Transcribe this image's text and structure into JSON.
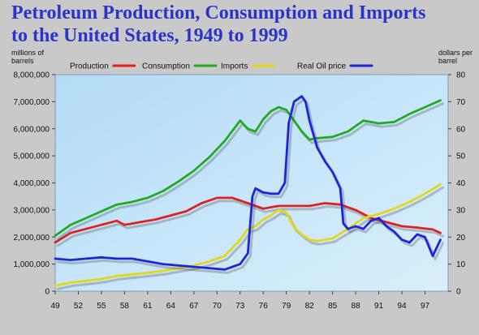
{
  "title_line1": "Petroleum Production, Consumption and Imports",
  "title_line2": "to the United States, 1949 to 1999",
  "chart_data": {
    "type": "line",
    "title": "Petroleum Production, Consumption and Imports to the United States, 1949 to 1999",
    "ylabel_left": [
      "millions of",
      "barrels"
    ],
    "ylabel_right": [
      "dollars per",
      "barrel"
    ],
    "xlabel": "",
    "xlim": [
      1949,
      2000
    ],
    "ylim_left": [
      0,
      8000000
    ],
    "ylim_right": [
      0,
      80
    ],
    "x_tick_labels": [
      "49",
      "52",
      "55",
      "58",
      "61",
      "64",
      "67",
      "70",
      "73",
      "76",
      "79",
      "82",
      "85",
      "88",
      "91",
      "94",
      "97"
    ],
    "x_tick_years": [
      1949,
      1952,
      1955,
      1958,
      1961,
      1964,
      1967,
      1970,
      1973,
      1976,
      1979,
      1982,
      1985,
      1988,
      1991,
      1994,
      1997
    ],
    "y_left_tick_labels": [
      "0",
      "1,000,000",
      "2,000,000",
      "3,000,000",
      "4,000,000",
      "5,000,000",
      "6,000,000",
      "7,000,000",
      "8,000,000"
    ],
    "y_right_tick_labels": [
      "0",
      "10",
      "20",
      "30",
      "40",
      "50",
      "60",
      "70",
      "80"
    ],
    "grid": false,
    "legend_position": "top",
    "series": [
      {
        "name": "Production",
        "axis": "left",
        "color": "#dd2222",
        "x": [
          1949,
          1951,
          1953,
          1955,
          1957,
          1958,
          1960,
          1962,
          1964,
          1966,
          1968,
          1970,
          1972,
          1974,
          1976,
          1978,
          1980,
          1982,
          1984,
          1986,
          1988,
          1990,
          1992,
          1994,
          1996,
          1998,
          1999
        ],
        "y": [
          1800000,
          2150000,
          2300000,
          2450000,
          2600000,
          2450000,
          2550000,
          2650000,
          2800000,
          2950000,
          3250000,
          3450000,
          3450000,
          3250000,
          3050000,
          3150000,
          3150000,
          3150000,
          3250000,
          3200000,
          3000000,
          2700000,
          2550000,
          2400000,
          2350000,
          2280000,
          2150000
        ]
      },
      {
        "name": "Consumption",
        "axis": "left",
        "color": "#22aa22",
        "x": [
          1949,
          1951,
          1953,
          1955,
          1957,
          1959,
          1961,
          1963,
          1965,
          1967,
          1969,
          1971,
          1973,
          1974,
          1975,
          1976,
          1977,
          1978,
          1979,
          1980,
          1981,
          1982,
          1983,
          1985,
          1987,
          1989,
          1991,
          1993,
          1995,
          1997,
          1999
        ],
        "y": [
          2050000,
          2450000,
          2700000,
          2950000,
          3200000,
          3300000,
          3450000,
          3700000,
          4050000,
          4450000,
          4950000,
          5550000,
          6300000,
          6000000,
          5900000,
          6350000,
          6650000,
          6800000,
          6700000,
          6300000,
          5900000,
          5600000,
          5650000,
          5700000,
          5900000,
          6300000,
          6200000,
          6250000,
          6550000,
          6800000,
          7050000
        ]
      },
      {
        "name": "Imports",
        "axis": "left",
        "color": "#e4d61c",
        "x": [
          1949,
          1951,
          1953,
          1955,
          1957,
          1959,
          1961,
          1963,
          1965,
          1967,
          1969,
          1971,
          1973,
          1974,
          1975,
          1976,
          1977,
          1978,
          1979,
          1980,
          1981,
          1982,
          1983,
          1985,
          1987,
          1989,
          1991,
          1993,
          1995,
          1997,
          1999
        ],
        "y": [
          200000,
          320000,
          380000,
          450000,
          560000,
          620000,
          680000,
          750000,
          850000,
          950000,
          1100000,
          1300000,
          1900000,
          2300000,
          2400000,
          2650000,
          2800000,
          3000000,
          2900000,
          2350000,
          2100000,
          1900000,
          1850000,
          1950000,
          2300000,
          2700000,
          2850000,
          3050000,
          3300000,
          3600000,
          3950000
        ]
      },
      {
        "name": "Real Oil price",
        "axis": "right",
        "color": "#1f24d8",
        "x": [
          1949,
          1951,
          1953,
          1955,
          1957,
          1959,
          1961,
          1963,
          1965,
          1967,
          1969,
          1971,
          1972,
          1973,
          1974,
          1974.6,
          1975,
          1976,
          1977,
          1978,
          1978.8,
          1979.3,
          1980,
          1981,
          1981.5,
          1982,
          1983,
          1984,
          1985,
          1986,
          1986.4,
          1987,
          1988,
          1989,
          1990,
          1991,
          1992,
          1993,
          1994,
          1995,
          1996,
          1997,
          1998,
          1999
        ],
        "y": [
          12,
          11.5,
          12,
          12.5,
          12,
          12,
          11,
          10,
          9.5,
          9,
          8.5,
          8,
          9,
          10,
          14,
          35,
          38,
          36.5,
          36,
          36,
          40,
          62,
          70,
          72,
          70,
          63,
          53,
          48,
          44,
          38,
          25,
          23,
          24,
          23,
          26,
          27,
          24,
          22,
          19,
          18,
          21,
          20,
          13,
          19
        ]
      }
    ]
  }
}
